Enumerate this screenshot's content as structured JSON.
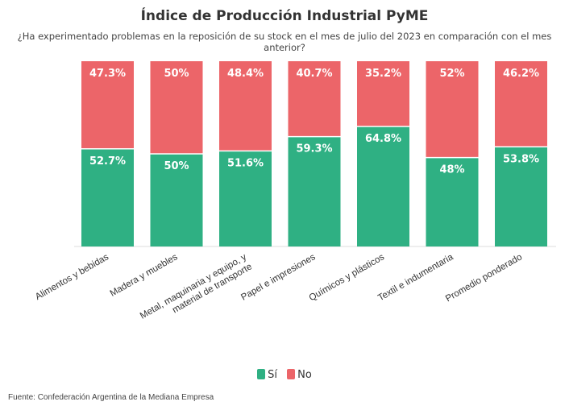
{
  "header": {
    "title": "Índice de Producción Industrial PyME",
    "subtitle": "¿Ha experimentado problemas en la reposición de su stock en el mes de julio del 2023 en comparación con el mes anterior?"
  },
  "legend": {
    "items": [
      {
        "label": "Sí",
        "color": "#2fb083"
      },
      {
        "label": "No",
        "color": "#ec6569"
      }
    ]
  },
  "source": "Fuente: Confederación Argentina de la Mediana Empresa",
  "chart_data": {
    "type": "bar",
    "stacked": true,
    "title": "Índice de Producción Industrial PyME",
    "subtitle": "¿Ha experimentado problemas en la reposición de su stock en el mes de julio del 2023 en comparación con el mes anterior?",
    "categories": [
      "Alimentos y bebidas",
      "Madera y muebles",
      "Metal, maquinaria y equipo, y material de transporte",
      "Papel e impresiones",
      "Químicos y plásticos",
      "Textil e indumentaria",
      "Promedio ponderado"
    ],
    "series": [
      {
        "name": "Sí",
        "color": "#2fb083",
        "values": [
          52.7,
          50,
          51.6,
          59.3,
          64.8,
          48,
          53.8
        ],
        "labels": [
          "52.7%",
          "50%",
          "51.6%",
          "59.3%",
          "64.8%",
          "48%",
          "53.8%"
        ]
      },
      {
        "name": "No",
        "color": "#ec6569",
        "values": [
          47.3,
          50,
          48.4,
          40.7,
          35.2,
          52,
          46.2
        ],
        "labels": [
          "47.3%",
          "50%",
          "48.4%",
          "40.7%",
          "35.2%",
          "52%",
          "46.2%"
        ]
      }
    ],
    "ylim": [
      0,
      100
    ],
    "legend_position": "bottom",
    "grid": false
  }
}
